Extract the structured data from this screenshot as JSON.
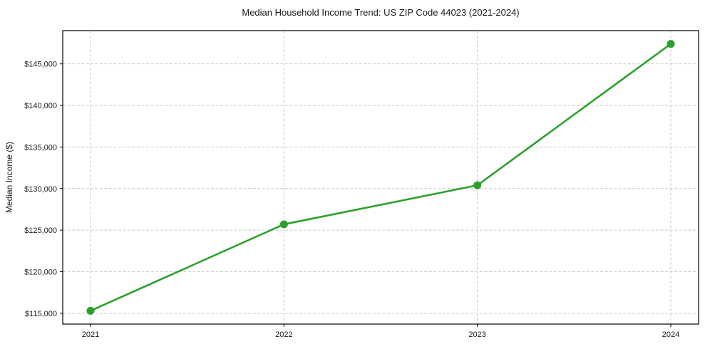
{
  "title": "Median Household Income Trend: US ZIP Code 44023 (2021-2024)",
  "colors": {
    "line": "#2ca02c",
    "marker": "#2ca02c",
    "grid": "#c9c9c9",
    "axis": "#000000",
    "text": "#1a1a1a",
    "background": "#ffffff"
  },
  "chart_data": {
    "type": "line",
    "title": "Median Household Income Trend: US ZIP Code 44023 (2021-2024)",
    "xlabel": "",
    "ylabel": "Median Income ($)",
    "categories": [
      "2021",
      "2022",
      "2023",
      "2024"
    ],
    "series": [
      {
        "name": "Median Household Income",
        "values": [
          115300,
          125700,
          130400,
          147400
        ]
      }
    ],
    "ylim": [
      113700,
      149000
    ],
    "yticks": [
      115000,
      120000,
      125000,
      130000,
      135000,
      140000,
      145000
    ],
    "ytick_labels": [
      "$115,000",
      "$120,000",
      "$125,000",
      "$130,000",
      "$135,000",
      "$140,000",
      "$145,000"
    ],
    "grid": true,
    "grid_style": "dashed",
    "legend_position": "none",
    "marker": "circle",
    "frame": true
  }
}
